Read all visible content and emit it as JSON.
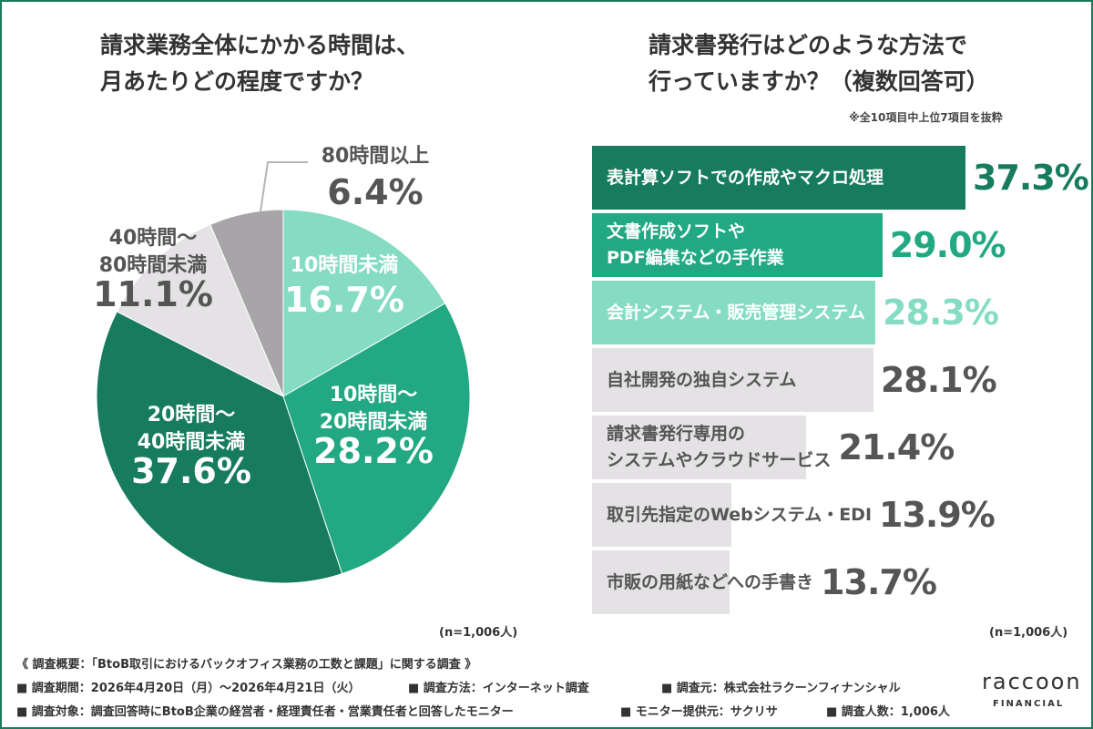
{
  "colors": {
    "frame": "#1b7a5c",
    "dark_green": "#177b5d",
    "green": "#22a882",
    "light_green": "#86dcc3",
    "light_gray": "#e4e2e4",
    "gray": "#a7a5a7"
  },
  "chart_data": [
    {
      "type": "pie",
      "title": [
        "請求業務全体にかかる時間は、",
        "月あたりどの程度ですか？"
      ],
      "n_label": "(n=1,006人)",
      "slices": [
        {
          "label": [
            "10時間未満"
          ],
          "value": 16.7,
          "value_label": "16.7%",
          "color": "#86dcc3",
          "text_color": "#ffffff"
        },
        {
          "label": [
            "10時間〜",
            "20時間未満"
          ],
          "value": 28.2,
          "value_label": "28.2%",
          "color": "#22a882",
          "text_color": "#ffffff"
        },
        {
          "label": [
            "20時間〜",
            "40時間未満"
          ],
          "value": 37.6,
          "value_label": "37.6%",
          "color": "#177b5d",
          "text_color": "#ffffff"
        },
        {
          "label": [
            "40時間〜",
            "80時間未満"
          ],
          "value": 11.1,
          "value_label": "11.1%",
          "color": "#e4e2e4",
          "text_color": "#555555"
        },
        {
          "label": [
            "80時間以上"
          ],
          "value": 6.4,
          "value_label": "6.4%",
          "color": "#a7a5a7",
          "text_color": "#555555"
        }
      ]
    },
    {
      "type": "bar",
      "orientation": "horizontal",
      "title": [
        "請求書発行はどのような方法で",
        "行っていますか？（複数回答可）"
      ],
      "note": "※全10項目中上位7項目を抜粋",
      "n_label": "(n=1,006人)",
      "xlim": [
        0,
        37.3
      ],
      "bars": [
        {
          "label": [
            "表計算ソフトでの作成やマクロ処理"
          ],
          "value": 37.3,
          "value_label": "37.3%",
          "color": "#177b5d",
          "text_color": "#ffffff",
          "value_color": "#177b5d"
        },
        {
          "label": [
            "文書作成ソフトや",
            "PDF編集などの手作業"
          ],
          "value": 29.0,
          "value_label": "29.0%",
          "color": "#22a882",
          "text_color": "#ffffff",
          "value_color": "#22a882"
        },
        {
          "label": [
            "会計システム・販売管理システム"
          ],
          "value": 28.3,
          "value_label": "28.3%",
          "color": "#86dcc3",
          "text_color": "#ffffff",
          "value_color": "#86dcc3"
        },
        {
          "label": [
            "自社開発の独自システム"
          ],
          "value": 28.1,
          "value_label": "28.1%",
          "color": "#e4e2e4",
          "text_color": "#555555",
          "value_color": "#555555"
        },
        {
          "label": [
            "請求書発行専用の",
            "システムやクラウドサービス"
          ],
          "value": 21.4,
          "value_label": "21.4%",
          "color": "#e4e2e4",
          "text_color": "#555555",
          "value_color": "#555555"
        },
        {
          "label": [
            "取引先指定のWebシステム・EDI"
          ],
          "value": 13.9,
          "value_label": "13.9%",
          "color": "#e4e2e4",
          "text_color": "#555555",
          "value_color": "#555555"
        },
        {
          "label": [
            "市販の用紙などへの手書き"
          ],
          "value": 13.7,
          "value_label": "13.7%",
          "color": "#e4e2e4",
          "text_color": "#555555",
          "value_color": "#555555"
        }
      ]
    }
  ],
  "footer": {
    "heading": "《 調査概要：「BtoB取引におけるバックオフィス業務の工数と課題」に関する調査 》",
    "line1": [
      "■ 調査期間：2026年4月20日（月）〜2026年4月21日（火）",
      "■ 調査方法：インターネット調査",
      "■ 調査元：株式会社ラクーンフィナンシャル"
    ],
    "line2": [
      "■ 調査対象：調査回答時にBtoB企業の経営者・経理責任者・営業責任者と回答したモニター",
      "■ モニター提供元：サクリサ",
      "■ 調査人数：1,006人"
    ]
  },
  "logo": {
    "word": "raccoon",
    "sub": "FINANCIAL"
  }
}
